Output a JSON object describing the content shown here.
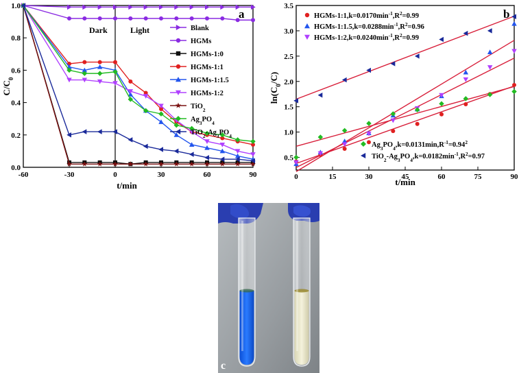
{
  "colors": {
    "blank": "#8a2be2",
    "hgms": "#8a2be2",
    "hgms10": "#111111",
    "hgms11": "#e02020",
    "hgms115": "#2255ee",
    "hgms12": "#b040ff",
    "tio2": "#7a1010",
    "ag3po4": "#22bb22",
    "tio2ag": "#1a2a9a",
    "fit": "#d81f3a",
    "photo_bg": "#9aa0a4",
    "glove": "#2a3eb0",
    "blue_solution": "#1565e8",
    "clear_solution": "#ece8c8"
  },
  "panel_c_icons": [
    "left-glove-icon",
    "right-glove-icon",
    "blue-test-tube-icon",
    "clear-test-tube-icon"
  ],
  "chart_data": [
    {
      "id": "a",
      "type": "line",
      "panel_label": "a",
      "xlabel": "t/min",
      "ylabel": "C/C",
      "ylabel_sub": "0",
      "xlim": [
        -60,
        90
      ],
      "ylim": [
        0.0,
        1.0
      ],
      "xticks": [
        "-60",
        "-30",
        "0",
        "30",
        "60",
        "90"
      ],
      "yticks": [
        "0.0",
        "0.2",
        "0.4",
        "0.6",
        "0.8",
        "1.0"
      ],
      "annotations": [
        "Dark",
        "Light"
      ],
      "divider_x": 0,
      "legend_position": "right",
      "series": [
        {
          "name": "Blank",
          "color_key": "blank",
          "marker": "tri-right",
          "x": [
            -60,
            -30,
            -20,
            -10,
            0,
            10,
            20,
            30,
            40,
            50,
            60,
            70,
            80,
            90
          ],
          "y": [
            1.0,
            0.99,
            0.99,
            0.99,
            0.99,
            0.99,
            0.99,
            0.99,
            0.99,
            0.99,
            0.99,
            0.99,
            0.99,
            0.99
          ]
        },
        {
          "name": "HGMs",
          "color_key": "hgms",
          "marker": "circle",
          "x": [
            -60,
            -30,
            -20,
            -10,
            0,
            10,
            20,
            30,
            40,
            50,
            60,
            70,
            80,
            90
          ],
          "y": [
            1.0,
            0.92,
            0.92,
            0.92,
            0.92,
            0.92,
            0.92,
            0.92,
            0.92,
            0.92,
            0.92,
            0.92,
            0.91,
            0.91
          ]
        },
        {
          "name": "HGMs-1:0",
          "color_key": "hgms10",
          "marker": "square",
          "x": [
            -60,
            -30,
            -20,
            -10,
            0,
            10,
            20,
            30,
            40,
            50,
            60,
            70,
            80,
            90
          ],
          "y": [
            1.0,
            0.03,
            0.03,
            0.03,
            0.03,
            0.02,
            0.03,
            0.03,
            0.03,
            0.03,
            0.03,
            0.03,
            0.03,
            0.03
          ]
        },
        {
          "name": "HGMs-1:1",
          "color_key": "hgms11",
          "marker": "circle",
          "x": [
            -60,
            -30,
            -20,
            -10,
            0,
            10,
            20,
            30,
            40,
            50,
            60,
            70,
            80,
            90
          ],
          "y": [
            1.0,
            0.64,
            0.65,
            0.65,
            0.65,
            0.53,
            0.46,
            0.36,
            0.28,
            0.22,
            0.2,
            0.18,
            0.16,
            0.14
          ]
        },
        {
          "name": "HGMs-1:1.5",
          "color_key": "hgms115",
          "marker": "tri-up",
          "x": [
            -60,
            -30,
            -20,
            -10,
            0,
            10,
            20,
            30,
            40,
            50,
            60,
            70,
            80,
            90
          ],
          "y": [
            1.0,
            0.62,
            0.6,
            0.62,
            0.6,
            0.45,
            0.35,
            0.28,
            0.2,
            0.14,
            0.12,
            0.1,
            0.07,
            0.05
          ]
        },
        {
          "name": "HGMs-1:2",
          "color_key": "hgms12",
          "marker": "tri-down",
          "x": [
            -60,
            -30,
            -20,
            -10,
            0,
            10,
            20,
            30,
            40,
            50,
            60,
            70,
            80,
            90
          ],
          "y": [
            1.0,
            0.54,
            0.54,
            0.53,
            0.52,
            0.47,
            0.44,
            0.38,
            0.29,
            0.22,
            0.16,
            0.14,
            0.1,
            0.08
          ]
        },
        {
          "name": "TiO",
          "name_sub": "2",
          "color_key": "tio2",
          "marker": "star",
          "x": [
            -60,
            -30,
            -20,
            -10,
            0,
            10,
            20,
            30,
            40,
            50,
            60,
            70,
            80,
            90
          ],
          "y": [
            1.0,
            0.02,
            0.02,
            0.02,
            0.02,
            0.02,
            0.02,
            0.02,
            0.02,
            0.02,
            0.02,
            0.02,
            0.02,
            0.02
          ]
        },
        {
          "name": "Ag",
          "name_sub": "3",
          "name_after": "PO",
          "name_sub2": "4",
          "color_key": "ag3po4",
          "marker": "diamond",
          "x": [
            -60,
            -30,
            -20,
            -10,
            0,
            10,
            20,
            30,
            40,
            50,
            60,
            70,
            80,
            90
          ],
          "y": [
            1.0,
            0.6,
            0.58,
            0.58,
            0.59,
            0.42,
            0.35,
            0.33,
            0.26,
            0.24,
            0.21,
            0.2,
            0.17,
            0.16
          ]
        },
        {
          "name": "TiO",
          "name_sub": "2",
          "name_after": "-Ag",
          "name_sub2": "3",
          "name_after2": "PO",
          "name_sub3": "4",
          "color_key": "tio2ag",
          "marker": "tri-left",
          "x": [
            -60,
            -30,
            -20,
            -10,
            0,
            10,
            20,
            30,
            40,
            50,
            60,
            70,
            80,
            90
          ],
          "y": [
            1.0,
            0.2,
            0.22,
            0.22,
            0.22,
            0.17,
            0.13,
            0.11,
            0.1,
            0.08,
            0.06,
            0.05,
            0.05,
            0.04
          ]
        }
      ]
    },
    {
      "id": "b",
      "type": "scatter",
      "panel_label": "b",
      "xlabel": "t/min",
      "ylabel": "ln(C",
      "ylabel_sub": "0",
      "ylabel_after": "/C)",
      "xlim": [
        0,
        90
      ],
      "ylim": [
        0.25,
        3.5
      ],
      "xticks": [
        "0",
        "15",
        "30",
        "45",
        "60",
        "75",
        "90"
      ],
      "yticks": [
        "0.5",
        "1.0",
        "1.5",
        "2.0",
        "2.5",
        "3.0",
        "3.5"
      ],
      "fit_color_key": "fit",
      "legend_position": "top-left and bottom-right",
      "series": [
        {
          "name": "HGMs-1:1,k=0.0170min",
          "sup": "-1",
          "tail": ",R",
          "sup2": "2",
          "tail2": "=0.99",
          "legend_group": "top",
          "color_key": "hgms11",
          "marker": "circle",
          "x": [
            0,
            10,
            20,
            30,
            40,
            50,
            60,
            70,
            80,
            90
          ],
          "y": [
            0.42,
            0.55,
            0.67,
            0.8,
            1.02,
            1.16,
            1.35,
            1.55,
            1.75,
            1.93
          ],
          "fit": [
            0.38,
            0.017
          ]
        },
        {
          "name": "HGMs-1:1.5,k=0.0288min",
          "sup": "-1",
          "tail": ",R",
          "sup2": "2",
          "tail2": "=0.96",
          "legend_group": "top",
          "color_key": "hgms115",
          "marker": "tri-up",
          "x": [
            0,
            10,
            20,
            30,
            40,
            50,
            60,
            70,
            80,
            90
          ],
          "y": [
            0.37,
            0.6,
            0.82,
            0.98,
            1.33,
            1.45,
            1.71,
            2.18,
            2.58,
            3.14
          ],
          "fit": [
            0.22,
            0.0288
          ]
        },
        {
          "name": "HGMs-1:2,k=0.0240min",
          "sup": "-1",
          "tail": ",R",
          "sup2": "2",
          "tail2": "=0.99",
          "legend_group": "top",
          "color_key": "hgms12",
          "marker": "tri-down",
          "x": [
            0,
            10,
            20,
            30,
            40,
            50,
            60,
            70,
            80,
            90
          ],
          "y": [
            0.4,
            0.58,
            0.76,
            0.97,
            1.23,
            1.47,
            1.73,
            2.04,
            2.28,
            2.6
          ],
          "fit": [
            0.3,
            0.024
          ]
        },
        {
          "name": "Ag",
          "sub": "3",
          "mid": "PO",
          "sub2": "4",
          "tail": ",k=0.0131min",
          "sup": "-1",
          "tail2": ",R",
          "sup2": "2",
          "tail3": "=0.94",
          "legend_group": "bottom",
          "color_key": "ag3po4",
          "marker": "diamond",
          "x": [
            0,
            10,
            20,
            30,
            40,
            50,
            60,
            70,
            80,
            90
          ],
          "y": [
            0.5,
            0.9,
            1.03,
            1.17,
            1.36,
            1.44,
            1.56,
            1.66,
            1.74,
            1.8
          ],
          "fit": [
            0.72,
            0.0131
          ]
        },
        {
          "name": "TiO",
          "sub": "2",
          "mid": "-Ag",
          "sub2": "3",
          "tail": "PO",
          "sub3": "4",
          "tail2": ",k=0.0182min",
          "sup": "-1",
          "tail3": ",R",
          "sup2": "2",
          "tail4": "=0.97",
          "legend_group": "bottom",
          "color_key": "tio2ag",
          "marker": "tri-left",
          "x": [
            0,
            10,
            20,
            30,
            40,
            50,
            60,
            70,
            80,
            90
          ],
          "y": [
            1.62,
            1.73,
            2.03,
            2.22,
            2.35,
            2.5,
            2.83,
            2.95,
            3.0,
            3.28
          ],
          "fit": [
            1.65,
            0.0182
          ]
        }
      ]
    }
  ],
  "panel_c": {
    "label": "c"
  }
}
